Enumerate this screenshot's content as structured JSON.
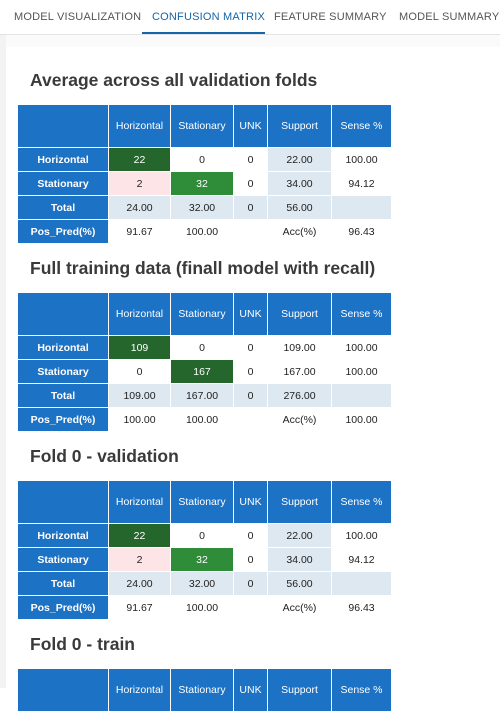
{
  "tabs": [
    "MODEL VISUALIZATION",
    "CONFUSION MATRIX",
    "FEATURE SUMMARY",
    "MODEL SUMMARY"
  ],
  "headers": [
    "Horizontal",
    "Stationary",
    "UNK",
    "Support",
    "Sense %"
  ],
  "row_labels": [
    "Horizontal",
    "Stationary",
    "Total",
    "Pos_Pred(%)"
  ],
  "acc_label": "Acc(%)",
  "sections": [
    {
      "title": "Average across all validation folds",
      "rows": [
        [
          "22",
          "0",
          "0",
          "22.00",
          "100.00"
        ],
        [
          "2",
          "32",
          "0",
          "34.00",
          "94.12"
        ],
        [
          "24.00",
          "32.00",
          "0",
          "56.00",
          ""
        ],
        [
          "91.67",
          "100.00",
          "",
          "Acc(%)",
          "96.43"
        ]
      ]
    },
    {
      "title": "Full training data (finall model with recall)",
      "rows": [
        [
          "109",
          "0",
          "0",
          "109.00",
          "100.00"
        ],
        [
          "0",
          "167",
          "0",
          "167.00",
          "100.00"
        ],
        [
          "109.00",
          "167.00",
          "0",
          "276.00",
          ""
        ],
        [
          "100.00",
          "100.00",
          "",
          "Acc(%)",
          "100.00"
        ]
      ]
    },
    {
      "title": "Fold 0 - validation",
      "rows": [
        [
          "22",
          "0",
          "0",
          "22.00",
          "100.00"
        ],
        [
          "2",
          "32",
          "0",
          "34.00",
          "94.12"
        ],
        [
          "24.00",
          "32.00",
          "0",
          "56.00",
          ""
        ],
        [
          "91.67",
          "100.00",
          "",
          "Acc(%)",
          "96.43"
        ]
      ]
    },
    {
      "title": "Fold 0 - train",
      "rows": []
    }
  ],
  "colors": {
    "header_blue": "#1c72c4",
    "dark_green": "#24662b",
    "mid_green": "#2f8c38",
    "light_pink": "#fde4e6",
    "light_blue": "#dde8f0",
    "tab_active": "#1565a8"
  }
}
